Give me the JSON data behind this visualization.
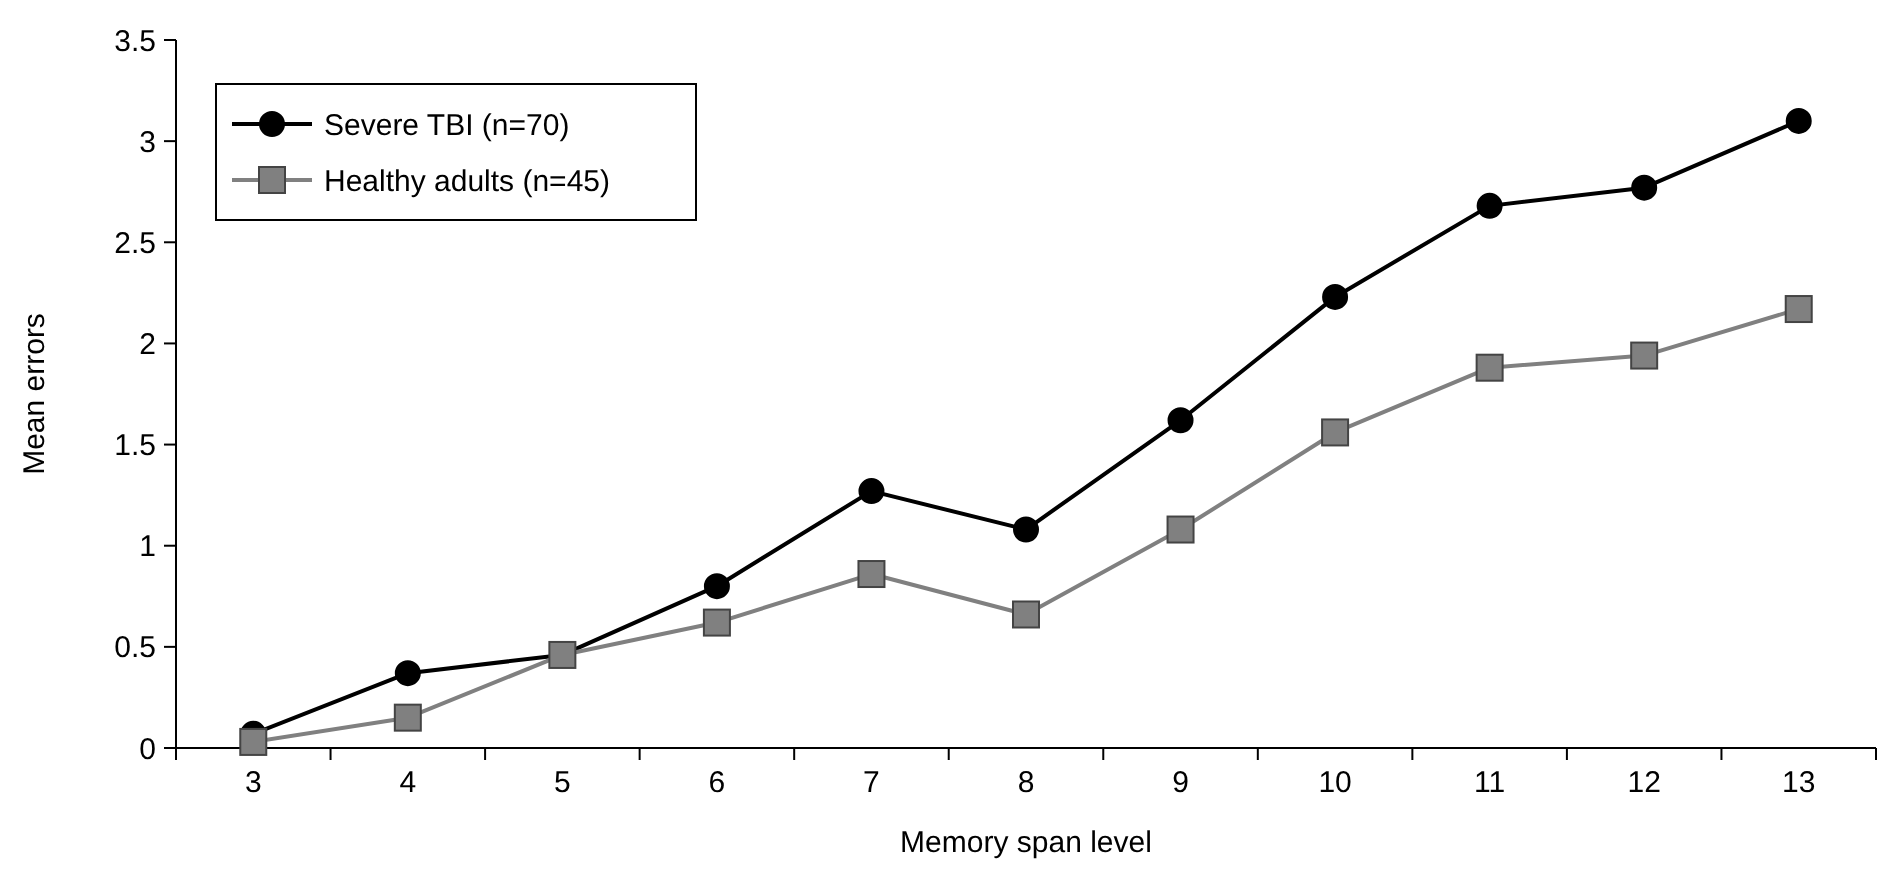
{
  "chart_data": {
    "type": "line",
    "xlabel": "Memory span level",
    "ylabel": "Mean errors",
    "categories": [
      "3",
      "4",
      "5",
      "6",
      "7",
      "8",
      "9",
      "10",
      "11",
      "12",
      "13"
    ],
    "series": [
      {
        "name": "Severe TBI (n=70)",
        "color": "#000000",
        "marker": "circle",
        "values": [
          0.07,
          0.37,
          0.46,
          0.8,
          1.27,
          1.08,
          1.62,
          2.23,
          2.68,
          2.77,
          3.1
        ]
      },
      {
        "name": "Healthy adults (n=45)",
        "color": "#808080",
        "marker": "square",
        "values": [
          0.03,
          0.15,
          0.46,
          0.62,
          0.86,
          0.66,
          1.08,
          1.56,
          1.88,
          1.94,
          2.17
        ]
      }
    ],
    "ylim": [
      0,
      3.5
    ],
    "yticks": [
      0,
      0.5,
      1,
      1.5,
      2,
      2.5,
      3,
      3.5
    ],
    "grid": false,
    "legend": "top left",
    "line_style": "solid"
  }
}
